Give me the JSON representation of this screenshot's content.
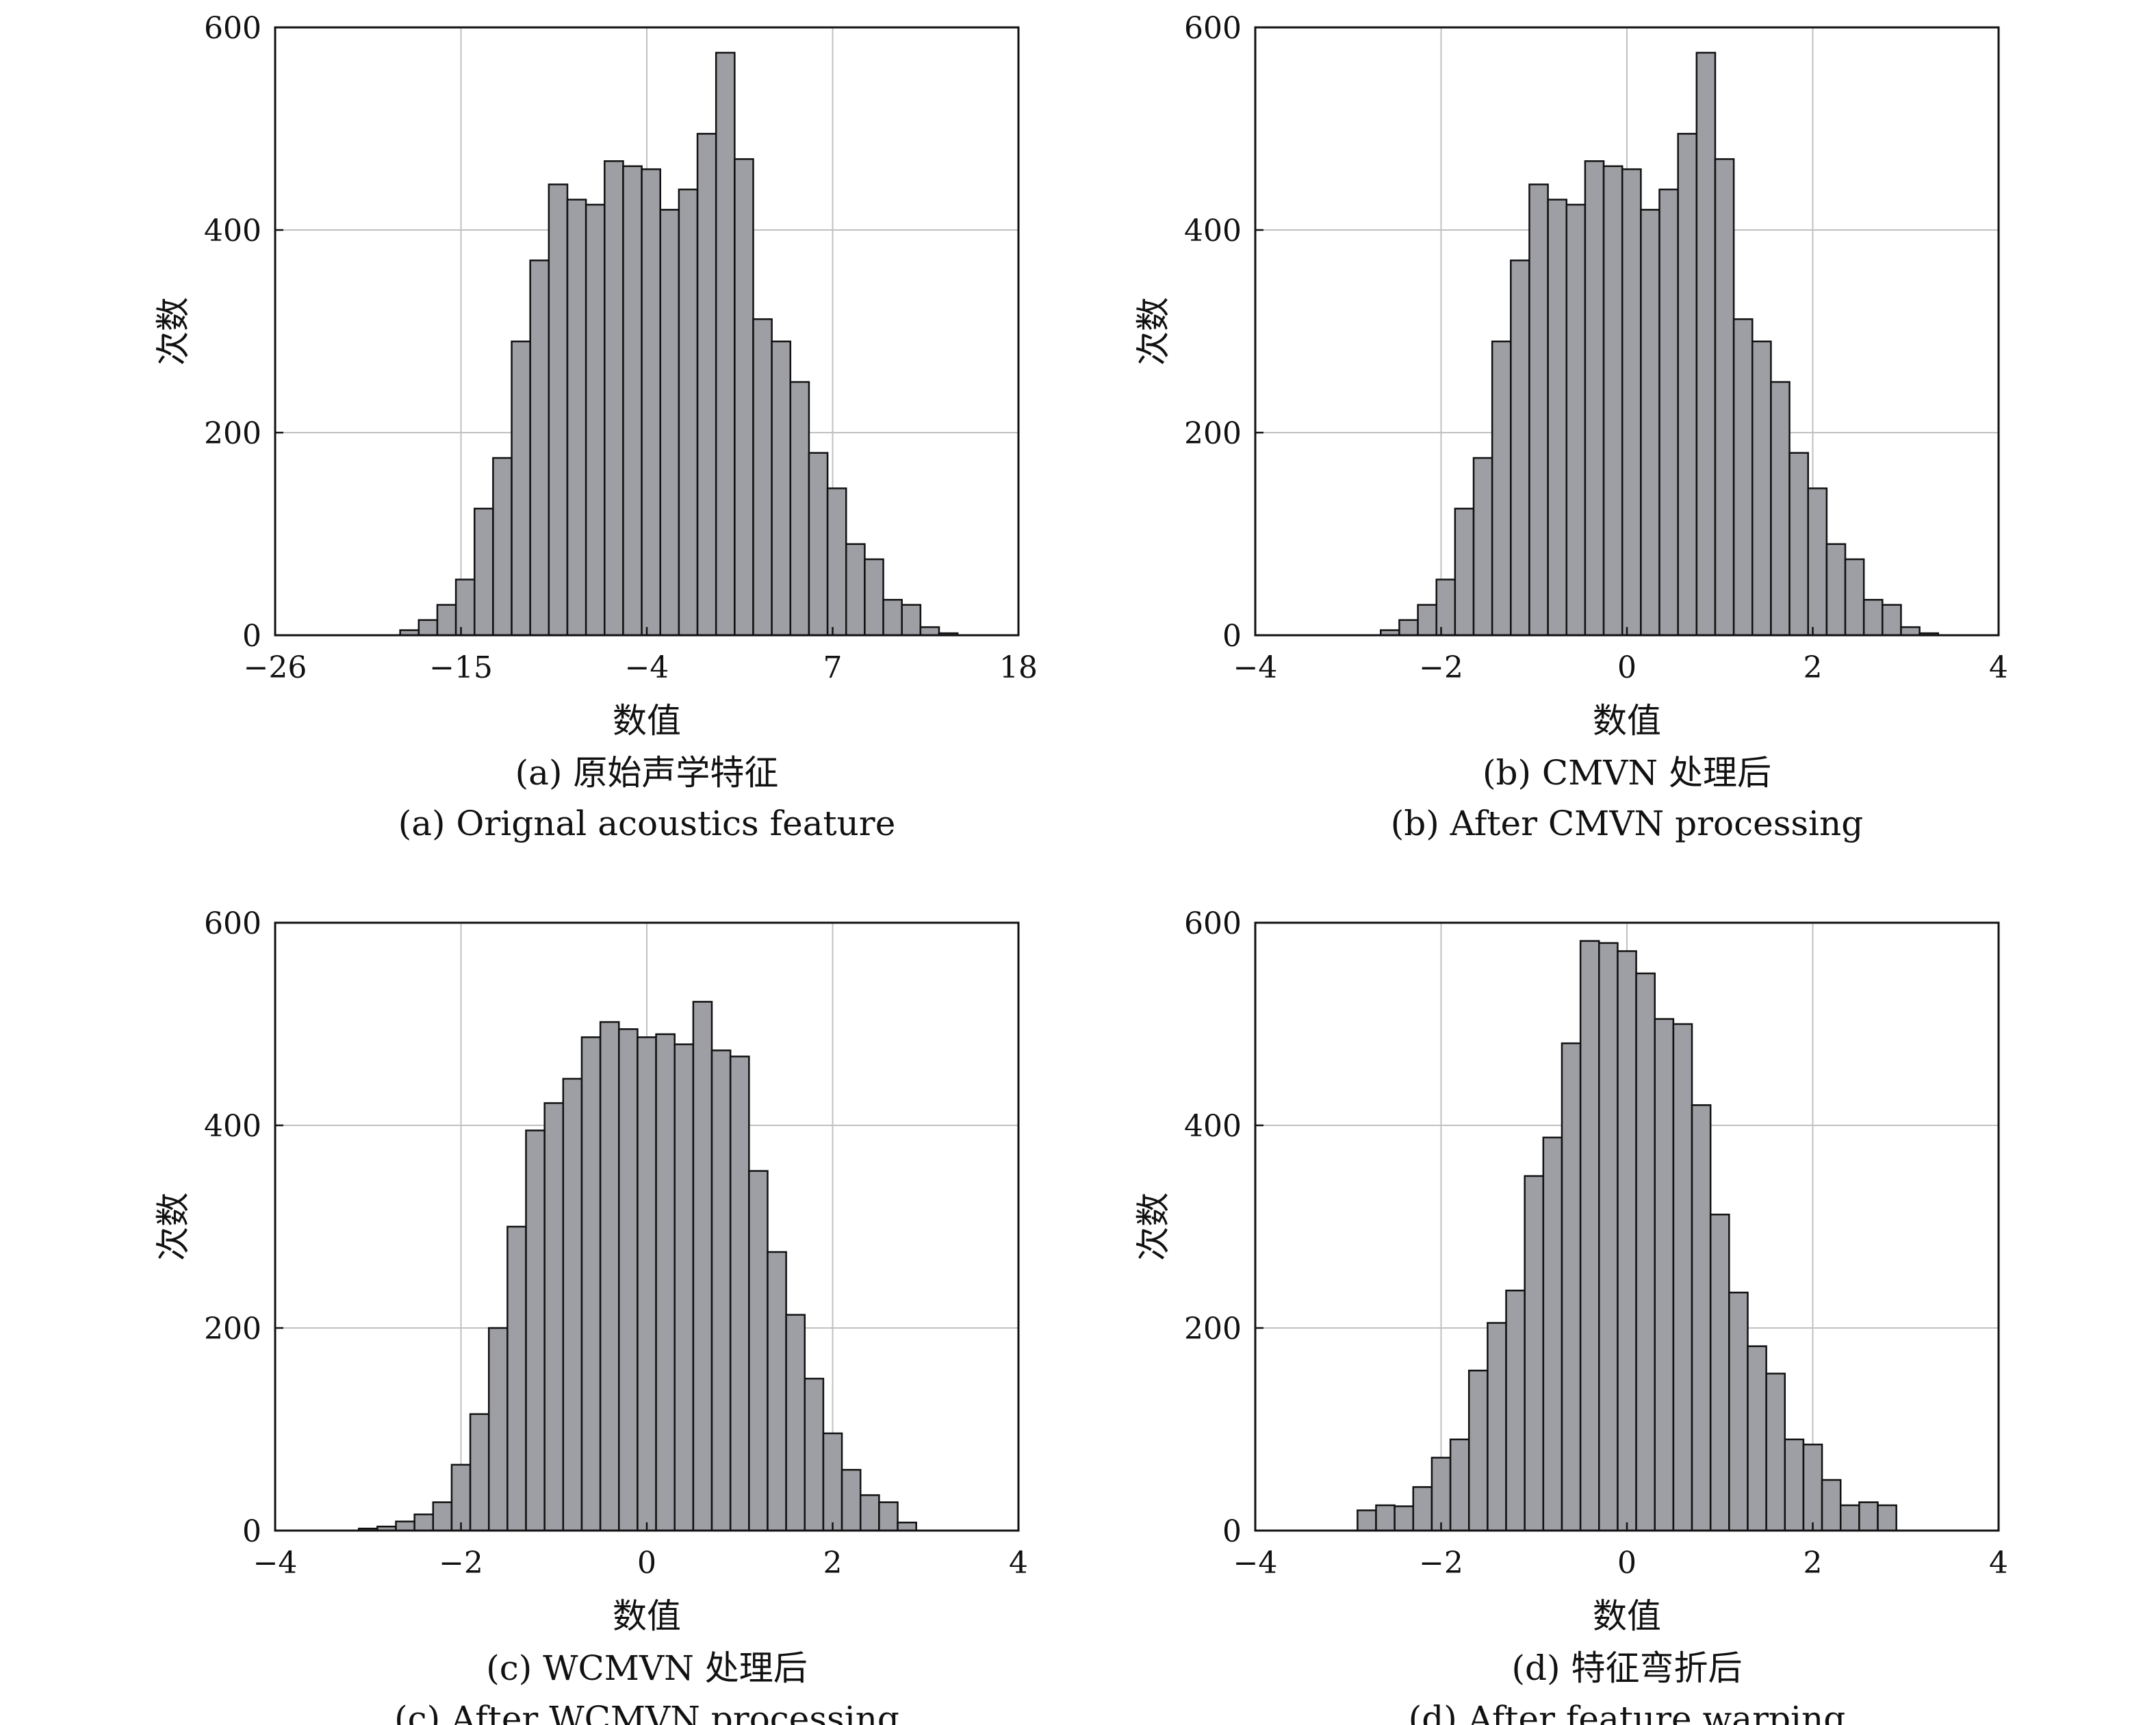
{
  "chart_data": [
    {
      "type": "bar",
      "caption_cn": "(a) 原始声学特征",
      "caption_en": "(a) Orignal acoustics feature",
      "xlabel": "数值",
      "ylabel": "次数",
      "xlim": [
        -26,
        18
      ],
      "ylim": [
        0,
        600
      ],
      "xticks": [
        -26,
        -15,
        -4,
        7,
        18
      ],
      "xtick_labels": [
        "−26",
        "−15",
        "−4",
        "7",
        "18"
      ],
      "yticks": [
        0,
        200,
        400,
        600
      ],
      "ytick_labels": [
        "0",
        "200",
        "400",
        "600"
      ],
      "grid": true,
      "bin_start": -18.6,
      "bin_width": 1.1,
      "values": [
        5,
        15,
        30,
        55,
        125,
        175,
        290,
        370,
        445,
        430,
        425,
        468,
        463,
        460,
        420,
        440,
        495,
        575,
        470,
        312,
        290,
        250,
        180,
        145,
        90,
        75,
        35,
        30,
        8,
        2
      ]
    },
    {
      "type": "bar",
      "caption_cn": "(b) CMVN 处理后",
      "caption_en": "(b) After CMVN processing",
      "xlabel": "数值",
      "ylabel": "次数",
      "xlim": [
        -4,
        4
      ],
      "ylim": [
        0,
        600
      ],
      "xticks": [
        -4,
        -2,
        0,
        2,
        4
      ],
      "xtick_labels": [
        "−4",
        "−2",
        "0",
        "2",
        "4"
      ],
      "yticks": [
        0,
        200,
        400,
        600
      ],
      "ytick_labels": [
        "0",
        "200",
        "400",
        "600"
      ],
      "grid": true,
      "bin_start": -2.65,
      "bin_width": 0.2,
      "values": [
        5,
        15,
        30,
        55,
        125,
        175,
        290,
        370,
        445,
        430,
        425,
        468,
        463,
        460,
        420,
        440,
        495,
        575,
        470,
        312,
        290,
        250,
        180,
        145,
        90,
        75,
        35,
        30,
        8,
        2
      ]
    },
    {
      "type": "bar",
      "caption_cn": "(c) WCMVN 处理后",
      "caption_en": "(c) After WCMVN processing",
      "xlabel": "数值",
      "ylabel": "次数",
      "xlim": [
        -4,
        4
      ],
      "ylim": [
        0,
        600
      ],
      "xticks": [
        -4,
        -2,
        0,
        2,
        4
      ],
      "xtick_labels": [
        "−4",
        "−2",
        "0",
        "2",
        "4"
      ],
      "yticks": [
        0,
        200,
        400,
        600
      ],
      "ytick_labels": [
        "0",
        "200",
        "400",
        "600"
      ],
      "grid": true,
      "bin_start": -3.1,
      "bin_width": 0.2,
      "values": [
        2,
        4,
        9,
        16,
        28,
        65,
        115,
        200,
        300,
        395,
        422,
        446,
        487,
        502,
        495,
        487,
        490,
        480,
        522,
        474,
        468,
        355,
        275,
        213,
        150,
        96,
        60,
        35,
        28,
        8
      ]
    },
    {
      "type": "bar",
      "caption_cn": "(d) 特征弯折后",
      "caption_en": "(d) After feature warping",
      "xlabel": "数值",
      "ylabel": "次数",
      "xlim": [
        -4,
        4
      ],
      "ylim": [
        0,
        600
      ],
      "xticks": [
        -4,
        -2,
        0,
        2,
        4
      ],
      "xtick_labels": [
        "−4",
        "−2",
        "0",
        "2",
        "4"
      ],
      "yticks": [
        0,
        200,
        400,
        600
      ],
      "ytick_labels": [
        "0",
        "200",
        "400",
        "600"
      ],
      "grid": true,
      "bin_start": -2.9,
      "bin_width": 0.2,
      "values": [
        20,
        25,
        24,
        43,
        72,
        90,
        158,
        205,
        237,
        350,
        388,
        481,
        582,
        580,
        572,
        550,
        505,
        500,
        420,
        312,
        235,
        182,
        155,
        90,
        85,
        50,
        25,
        28,
        25
      ]
    }
  ],
  "colors": {
    "bar_fill": "#9e9fa4",
    "bar_stroke": "#111111",
    "grid": "#c0c0c0",
    "axis": "#111111",
    "text": "#111111"
  }
}
